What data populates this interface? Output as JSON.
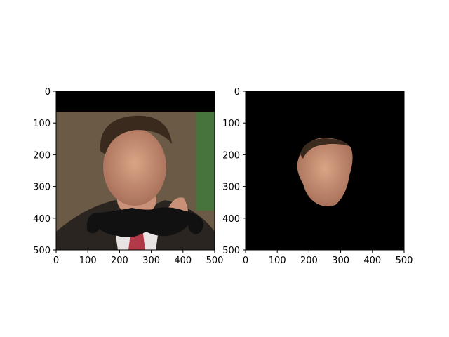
{
  "figure": {
    "background": "#ffffff"
  },
  "chart_data": [
    {
      "type": "image",
      "description": "photo of a man's face with a black mustache graphic overlaid; black band along the top",
      "xlim": [
        0,
        500
      ],
      "ylim": [
        500,
        0
      ],
      "xticks": [
        0,
        100,
        200,
        300,
        400,
        500
      ],
      "yticks": [
        0,
        100,
        200,
        300,
        400,
        500
      ],
      "x_tick_labels": [
        "0",
        "100",
        "200",
        "300",
        "400",
        "500"
      ],
      "y_tick_labels": [
        "0",
        "100",
        "200",
        "300",
        "400",
        "500"
      ],
      "title": "",
      "xlabel": "",
      "ylabel": ""
    },
    {
      "type": "image",
      "description": "segmented face only, everything else black",
      "xlim": [
        0,
        500
      ],
      "ylim": [
        500,
        0
      ],
      "xticks": [
        0,
        100,
        200,
        300,
        400,
        500
      ],
      "yticks": [
        0,
        100,
        200,
        300,
        400,
        500
      ],
      "x_tick_labels": [
        "0",
        "100",
        "200",
        "300",
        "400",
        "500"
      ],
      "y_tick_labels": [
        "0",
        "100",
        "200",
        "300",
        "400",
        "500"
      ],
      "title": "",
      "xlabel": "",
      "ylabel": ""
    }
  ],
  "colors": {
    "black": "#000000",
    "background_brown": "#6b5a45",
    "skin": "#c99278",
    "hair": "#3a2a1e",
    "suit": "#2a2520",
    "shirt": "#e8e4e4",
    "tie": "#b23a48",
    "flag_green": "#3f7a3a",
    "mustache": "#111111"
  }
}
